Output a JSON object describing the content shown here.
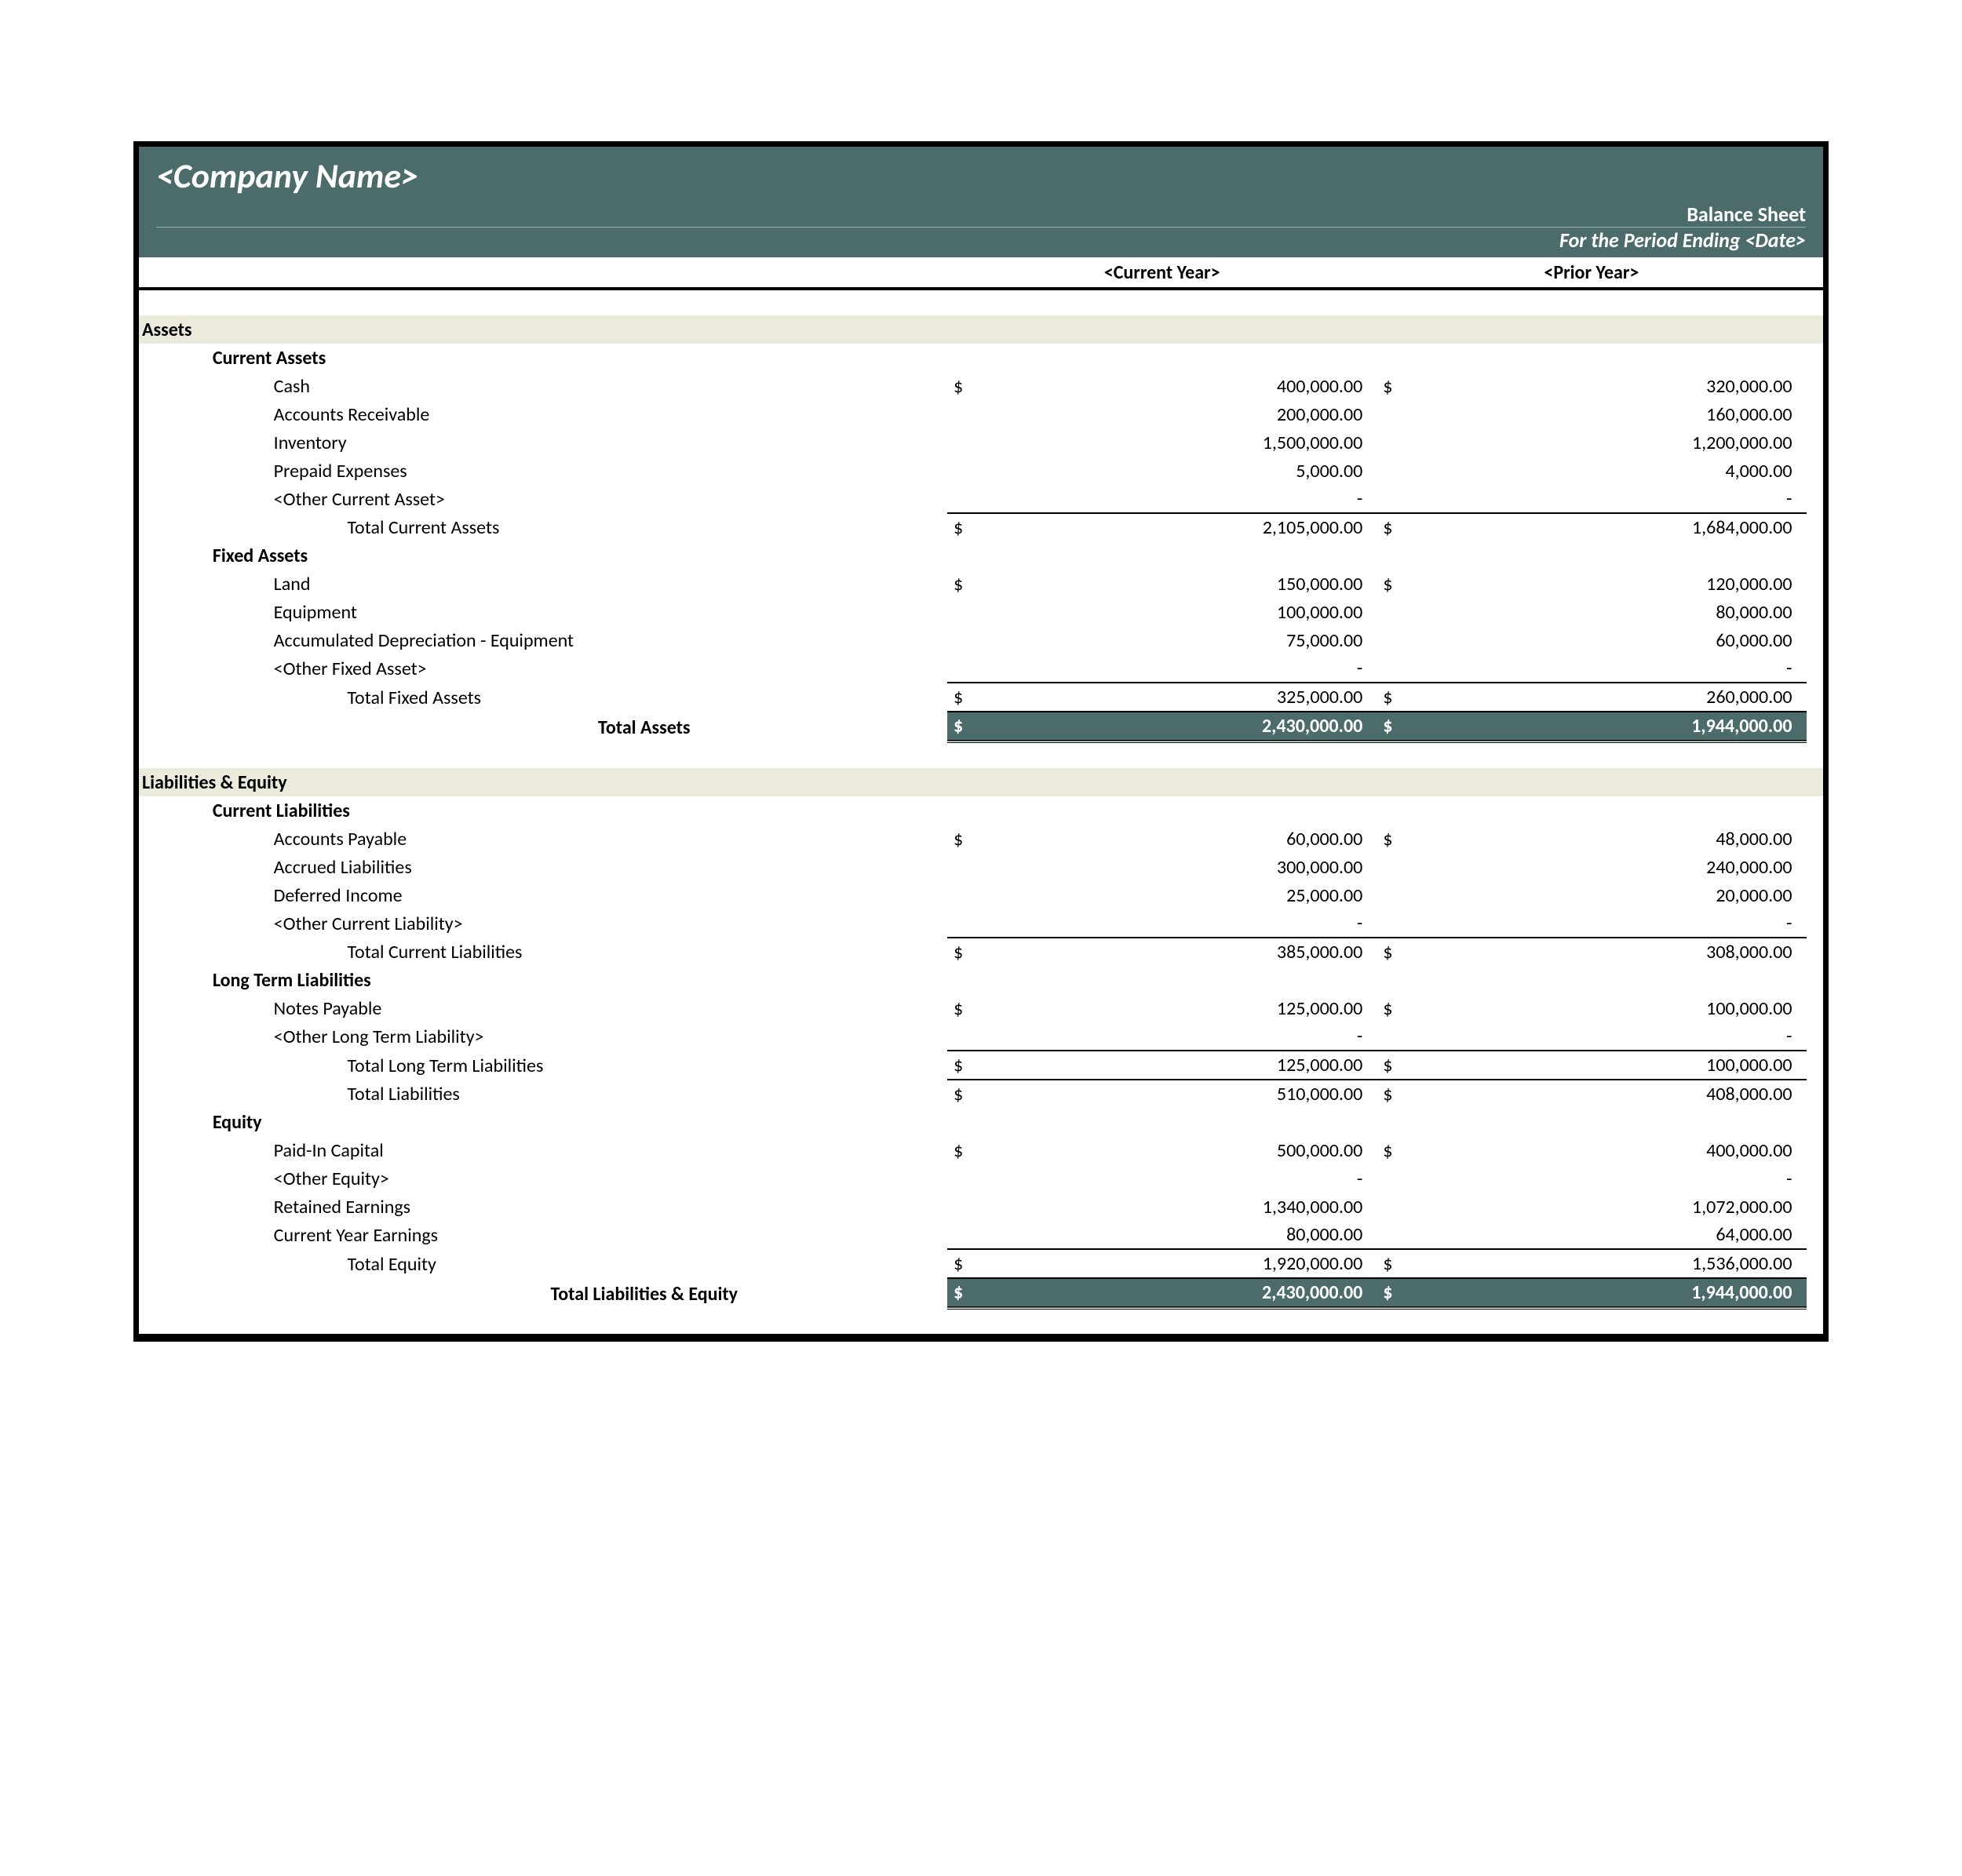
{
  "header": {
    "company_name": "<Company Name>",
    "title": "Balance Sheet",
    "period": "For the Period Ending <Date>"
  },
  "columns": {
    "current": "<Current Year>",
    "prior": "<Prior Year>"
  },
  "assets": {
    "title": "Assets",
    "current": {
      "title": "Current Assets",
      "rows": [
        {
          "label": "Cash",
          "cur": "400,000.00",
          "pri": "320,000.00",
          "ds": true
        },
        {
          "label": "Accounts Receivable",
          "cur": "200,000.00",
          "pri": "160,000.00"
        },
        {
          "label": "Inventory",
          "cur": "1,500,000.00",
          "pri": "1,200,000.00"
        },
        {
          "label": "Prepaid Expenses",
          "cur": "5,000.00",
          "pri": "4,000.00"
        },
        {
          "label": "<Other Current Asset>",
          "cur": "-",
          "pri": "-"
        }
      ],
      "total": {
        "label": "Total Current Assets",
        "cur": "2,105,000.00",
        "pri": "1,684,000.00"
      }
    },
    "fixed": {
      "title": "Fixed Assets",
      "rows": [
        {
          "label": "Land",
          "cur": "150,000.00",
          "pri": "120,000.00",
          "ds": true
        },
        {
          "label": "Equipment",
          "cur": "100,000.00",
          "pri": "80,000.00"
        },
        {
          "label": "Accumulated Depreciation - Equipment",
          "cur": "75,000.00",
          "pri": "60,000.00"
        },
        {
          "label": "<Other Fixed Asset>",
          "cur": "-",
          "pri": "-"
        }
      ],
      "total": {
        "label": "Total Fixed Assets",
        "cur": "325,000.00",
        "pri": "260,000.00"
      }
    },
    "grand": {
      "label": "Total Assets",
      "cur": "2,430,000.00",
      "pri": "1,944,000.00"
    }
  },
  "liab": {
    "title": "Liabilities & Equity",
    "current": {
      "title": "Current Liabilities",
      "rows": [
        {
          "label": "Accounts Payable",
          "cur": "60,000.00",
          "pri": "48,000.00",
          "ds": true
        },
        {
          "label": "Accrued Liabilities",
          "cur": "300,000.00",
          "pri": "240,000.00"
        },
        {
          "label": "Deferred Income",
          "cur": "25,000.00",
          "pri": "20,000.00"
        },
        {
          "label": "<Other Current Liability>",
          "cur": "-",
          "pri": "-"
        }
      ],
      "total": {
        "label": "Total Current Liabilities",
        "cur": "385,000.00",
        "pri": "308,000.00"
      }
    },
    "longterm": {
      "title": "Long Term Liabilities",
      "rows": [
        {
          "label": "Notes Payable",
          "cur": "125,000.00",
          "pri": "100,000.00",
          "ds": true
        },
        {
          "label": "<Other Long Term Liability>",
          "cur": "-",
          "pri": "-"
        }
      ],
      "total": {
        "label": "Total Long Term Liabilities",
        "cur": "125,000.00",
        "pri": "100,000.00"
      }
    },
    "totalliab": {
      "label": "Total Liabilities",
      "cur": "510,000.00",
      "pri": "408,000.00"
    },
    "equity": {
      "title": "Equity",
      "rows": [
        {
          "label": "Paid-In Capital",
          "cur": "500,000.00",
          "pri": "400,000.00",
          "ds": true
        },
        {
          "label": "<Other Equity>",
          "cur": "-",
          "pri": "-"
        },
        {
          "label": "Retained Earnings",
          "cur": "1,340,000.00",
          "pri": "1,072,000.00"
        },
        {
          "label": "Current Year Earnings",
          "cur": "80,000.00",
          "pri": "64,000.00"
        }
      ],
      "total": {
        "label": "Total Equity",
        "cur": "1,920,000.00",
        "pri": "1,536,000.00"
      }
    },
    "grand": {
      "label": "Total Liabilities & Equity",
      "cur": "2,430,000.00",
      "pri": "1,944,000.00"
    }
  },
  "dollar": "$",
  "colors": {
    "header_bg": "#4c6c6c",
    "section_bg": "#eceadb",
    "border": "#000000",
    "text": "#000000",
    "header_text": "#ffffff"
  }
}
